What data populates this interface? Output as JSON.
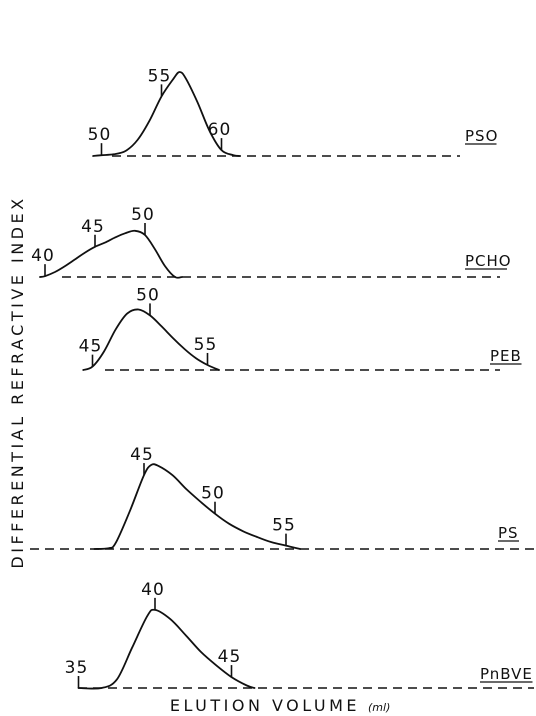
{
  "chart_data": {
    "type": "line",
    "xlabel": "ELUTION VOLUME",
    "xlabel_unit": "(ml)",
    "ylabel": "DIFFERENTIAL REFRACTIVE INDEX",
    "panels": [
      {
        "name": "PSO",
        "ticks": [
          {
            "label": "50",
            "x": 50
          },
          {
            "label": "55",
            "x": 55
          },
          {
            "label": "60",
            "x": 60
          }
        ],
        "points": [
          [
            49.3,
            0.0
          ],
          [
            50.0,
            0.01
          ],
          [
            51.0,
            0.02
          ],
          [
            52.0,
            0.06
          ],
          [
            53.0,
            0.19
          ],
          [
            54.0,
            0.42
          ],
          [
            55.0,
            0.71
          ],
          [
            56.0,
            0.92
          ],
          [
            56.5,
            1.0
          ],
          [
            57.0,
            0.93
          ],
          [
            58.0,
            0.64
          ],
          [
            59.0,
            0.3
          ],
          [
            60.0,
            0.07
          ],
          [
            61.0,
            0.01
          ],
          [
            61.5,
            0.0
          ]
        ]
      },
      {
        "name": "PCHO",
        "ticks": [
          {
            "label": "40",
            "x": 40
          },
          {
            "label": "45",
            "x": 45
          },
          {
            "label": "50",
            "x": 50
          }
        ],
        "points": [
          [
            39.5,
            0.0
          ],
          [
            40.0,
            0.01
          ],
          [
            41.0,
            0.06
          ],
          [
            42.0,
            0.13
          ],
          [
            43.0,
            0.21
          ],
          [
            44.0,
            0.29
          ],
          [
            45.0,
            0.36
          ],
          [
            46.0,
            0.41
          ],
          [
            47.0,
            0.47
          ],
          [
            48.0,
            0.52
          ],
          [
            49.0,
            0.55
          ],
          [
            50.0,
            0.5
          ],
          [
            51.0,
            0.33
          ],
          [
            52.0,
            0.13
          ],
          [
            53.0,
            0.0
          ],
          [
            53.7,
            0.0
          ]
        ]
      },
      {
        "name": "PEB",
        "ticks": [
          {
            "label": "45",
            "x": 45
          },
          {
            "label": "50",
            "x": 50
          },
          {
            "label": "55",
            "x": 55
          }
        ],
        "points": [
          [
            44.2,
            0.0
          ],
          [
            45.0,
            0.04
          ],
          [
            46.0,
            0.22
          ],
          [
            47.0,
            0.48
          ],
          [
            48.0,
            0.67
          ],
          [
            49.0,
            0.72
          ],
          [
            50.0,
            0.65
          ],
          [
            51.0,
            0.52
          ],
          [
            52.0,
            0.38
          ],
          [
            53.0,
            0.25
          ],
          [
            54.0,
            0.14
          ],
          [
            55.0,
            0.06
          ],
          [
            56.0,
            0.0
          ]
        ]
      },
      {
        "name": "PS",
        "ticks": [
          {
            "label": "45",
            "x": 45
          },
          {
            "label": "50",
            "x": 50
          },
          {
            "label": "55",
            "x": 55
          }
        ],
        "points": [
          [
            41.5,
            0.0
          ],
          [
            42.5,
            0.01
          ],
          [
            43.0,
            0.07
          ],
          [
            44.0,
            0.45
          ],
          [
            45.0,
            0.88
          ],
          [
            45.5,
            1.0
          ],
          [
            46.0,
            0.99
          ],
          [
            47.0,
            0.88
          ],
          [
            48.0,
            0.71
          ],
          [
            49.0,
            0.56
          ],
          [
            50.0,
            0.42
          ],
          [
            51.0,
            0.3
          ],
          [
            52.0,
            0.21
          ],
          [
            53.0,
            0.14
          ],
          [
            54.0,
            0.08
          ],
          [
            55.0,
            0.04
          ],
          [
            56.0,
            0.0
          ]
        ]
      },
      {
        "name": "PnBVE",
        "ticks": [
          {
            "label": "35",
            "x": 35
          },
          {
            "label": "40",
            "x": 40
          },
          {
            "label": "45",
            "x": 45
          }
        ],
        "points": [
          [
            35.0,
            0.0
          ],
          [
            36.5,
            0.0
          ],
          [
            37.5,
            0.1
          ],
          [
            38.5,
            0.48
          ],
          [
            39.5,
            0.86
          ],
          [
            40.0,
            0.93
          ],
          [
            41.0,
            0.82
          ],
          [
            42.0,
            0.63
          ],
          [
            43.0,
            0.43
          ],
          [
            44.0,
            0.27
          ],
          [
            45.0,
            0.13
          ],
          [
            46.0,
            0.03
          ],
          [
            46.5,
            0.0
          ]
        ]
      }
    ]
  }
}
